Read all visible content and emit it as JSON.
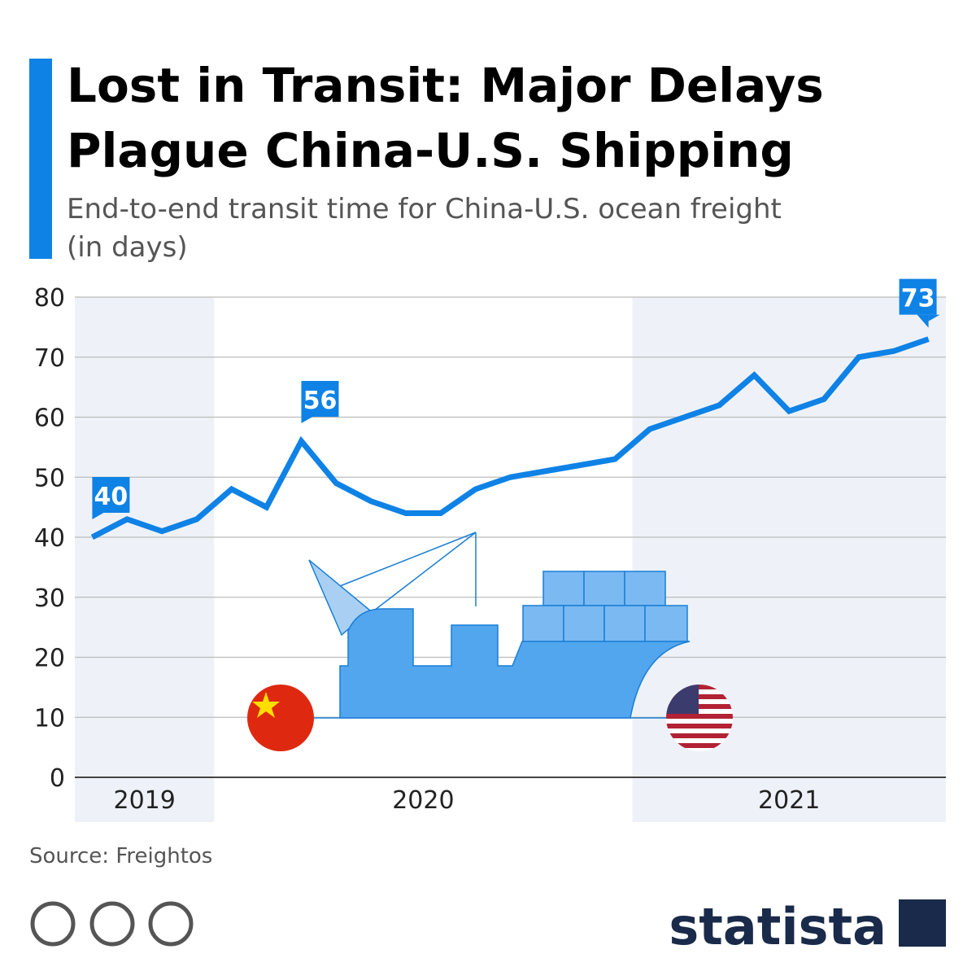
{
  "chart_data": {
    "type": "line",
    "title": [
      "Lost in Transit: Major Delays",
      "Plague China-U.S. Shipping"
    ],
    "subtitle": [
      "End-to-end transit time for China-U.S. ocean freight",
      "(in days)"
    ],
    "categories": [
      "2019",
      "2019",
      "2019",
      "2019",
      "2020",
      "2020",
      "2020",
      "2020",
      "2020",
      "2020",
      "2020",
      "2020",
      "2020",
      "2020",
      "2020",
      "2020",
      "2021",
      "2021",
      "2021",
      "2021",
      "2021",
      "2021",
      "2021",
      "2021",
      "2021"
    ],
    "series": [
      {
        "name": null,
        "color": "#0f82e6",
        "values": [
          40,
          43,
          41,
          43,
          48,
          45,
          56,
          49,
          46,
          44,
          44,
          48,
          50,
          51,
          52,
          53,
          58,
          60,
          62,
          67,
          61,
          63,
          70,
          71,
          73
        ],
        "value_labels": [
          "40",
          null,
          null,
          null,
          null,
          null,
          "56",
          null,
          null,
          null,
          null,
          null,
          null,
          null,
          null,
          null,
          null,
          null,
          null,
          null,
          null,
          null,
          null,
          null,
          "73"
        ]
      }
    ],
    "ylim": [
      0,
      80
    ],
    "yticks": [
      0,
      10,
      20,
      30,
      40,
      50,
      60,
      70,
      80
    ],
    "grid": true,
    "source": "Source: Freightos",
    "brand": "statista"
  }
}
